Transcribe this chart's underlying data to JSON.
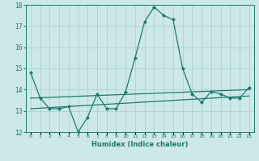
{
  "xlabel": "Humidex (Indice chaleur)",
  "x_values": [
    0,
    1,
    2,
    3,
    4,
    5,
    6,
    7,
    8,
    9,
    10,
    11,
    12,
    13,
    14,
    15,
    16,
    17,
    18,
    19,
    20,
    21,
    22,
    23
  ],
  "y_main": [
    14.8,
    13.6,
    13.1,
    13.1,
    13.2,
    12.0,
    12.7,
    13.8,
    13.1,
    13.1,
    13.9,
    15.5,
    17.2,
    17.9,
    17.5,
    17.3,
    15.0,
    13.8,
    13.4,
    13.9,
    13.8,
    13.6,
    13.6,
    14.1
  ],
  "y_trend1_start": 13.6,
  "y_trend1_end": 14.0,
  "y_trend2_start": 13.1,
  "y_trend2_end": 13.7,
  "line_color": "#1e7a6a",
  "bg_color": "#cce8e8",
  "grid_color": "#aacece",
  "ylim": [
    12,
    18
  ],
  "yticks": [
    12,
    13,
    14,
    15,
    16,
    17,
    18
  ],
  "xlim": [
    -0.5,
    23.5
  ],
  "markersize": 2.0,
  "linewidth": 0.9
}
